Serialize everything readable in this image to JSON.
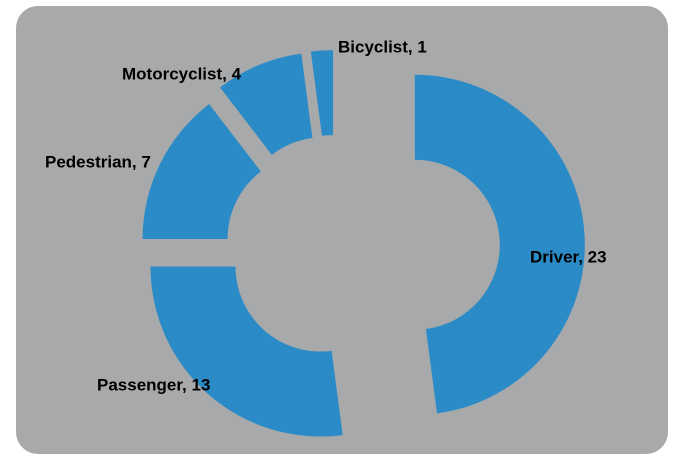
{
  "chart_data": {
    "type": "donut",
    "values": [
      23,
      13,
      7,
      4,
      1
    ],
    "value_labels": [
      "Driver, 23",
      "Passenger, 13",
      "Pedestrian, 7",
      "Motorcyclist, 4",
      "Bicyclist, 1"
    ],
    "color": "#2a8bc6"
  }
}
